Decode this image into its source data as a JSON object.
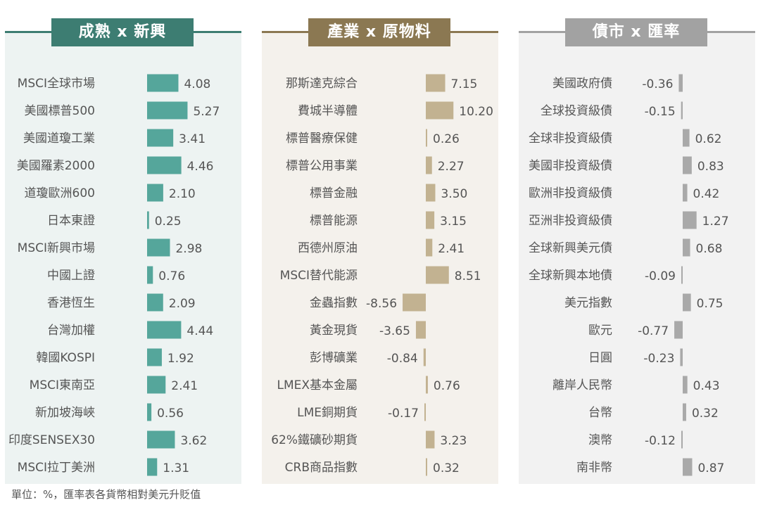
{
  "footnote": "單位：%，匯率表各貨幣相對美元升貶值",
  "colors": {
    "panel1_accent": "#3d7d72",
    "panel1_bar": "#55a69b",
    "panel1_bg": "#edf3f2",
    "panel2_accent": "#8b7852",
    "panel2_bar": "#c2b291",
    "panel2_bg": "#f4f1ec",
    "panel3_accent": "#a2a2a2",
    "panel3_bar": "#a9a9a9",
    "panel3_bg": "#f2f2f2"
  },
  "chart_data": [
    {
      "type": "bar",
      "title": "成熟 x 新興",
      "categories": [
        "MSCI全球市場",
        "美國標普500",
        "美國道瓊工業",
        "美國羅素2000",
        "道瓊歐洲600",
        "日本東證",
        "MSCI新興市場",
        "中國上證",
        "香港恆生",
        "台灣加權",
        "韓國KOSPI",
        "MSCI東南亞",
        "新加坡海峽",
        "印度SENSEX30",
        "MSCI拉丁美洲"
      ],
      "values": [
        4.08,
        5.27,
        3.41,
        4.46,
        2.1,
        0.25,
        2.98,
        0.76,
        2.09,
        4.44,
        1.92,
        2.41,
        0.56,
        3.62,
        1.31
      ],
      "labels": [
        "4.08",
        "5.27",
        "3.41",
        "4.46",
        "2.10",
        "0.25",
        "2.98",
        "0.76",
        "2.09",
        "4.44",
        "1.92",
        "2.41",
        "0.56",
        "3.62",
        "1.31"
      ],
      "xlim": [
        0,
        6
      ]
    },
    {
      "type": "bar",
      "title": "產業 x 原物料",
      "categories": [
        "那斯達克綜合",
        "費城半導體",
        "標普醫療保健",
        "標普公用事業",
        "標普金融",
        "標普能源",
        "西德州原油",
        "MSCI替代能源",
        "金蟲指數",
        "黃金現貨",
        "彭博礦業",
        "LMEX基本金屬",
        "LME銅期貨",
        "62%鐵礦砂期貨",
        "CRB商品指數"
      ],
      "values": [
        7.15,
        10.2,
        0.26,
        2.27,
        3.5,
        3.15,
        2.41,
        8.51,
        -8.56,
        -3.65,
        -0.84,
        0.76,
        -0.17,
        3.23,
        0.32
      ],
      "labels": [
        "7.15",
        "10.20",
        "0.26",
        "2.27",
        "3.50",
        "3.15",
        "2.41",
        "8.51",
        "-8.56",
        "-3.65",
        "-0.84",
        "0.76",
        "-0.17",
        "3.23",
        "0.32"
      ],
      "xlim": [
        -10,
        11
      ]
    },
    {
      "type": "bar",
      "title": "債市 x 匯率",
      "categories": [
        "美國政府債",
        "全球投資級債",
        "全球非投資級債",
        "美國非投資級債",
        "歐洲非投資級債",
        "亞洲非投資級債",
        "全球新興美元債",
        "全球新興本地債",
        "美元指數",
        "歐元",
        "日圓",
        "離岸人民幣",
        "台幣",
        "澳幣",
        "南非幣"
      ],
      "values": [
        -0.36,
        -0.15,
        0.62,
        0.83,
        0.42,
        1.27,
        0.68,
        -0.09,
        0.75,
        -0.77,
        -0.23,
        0.43,
        0.32,
        -0.12,
        0.87
      ],
      "labels": [
        "-0.36",
        "-0.15",
        "0.62",
        "0.83",
        "0.42",
        "1.27",
        "0.68",
        "-0.09",
        "0.75",
        "-0.77",
        "-0.23",
        "0.43",
        "0.32",
        "-0.12",
        "0.87"
      ],
      "xlim": [
        -1,
        1.5
      ]
    }
  ]
}
